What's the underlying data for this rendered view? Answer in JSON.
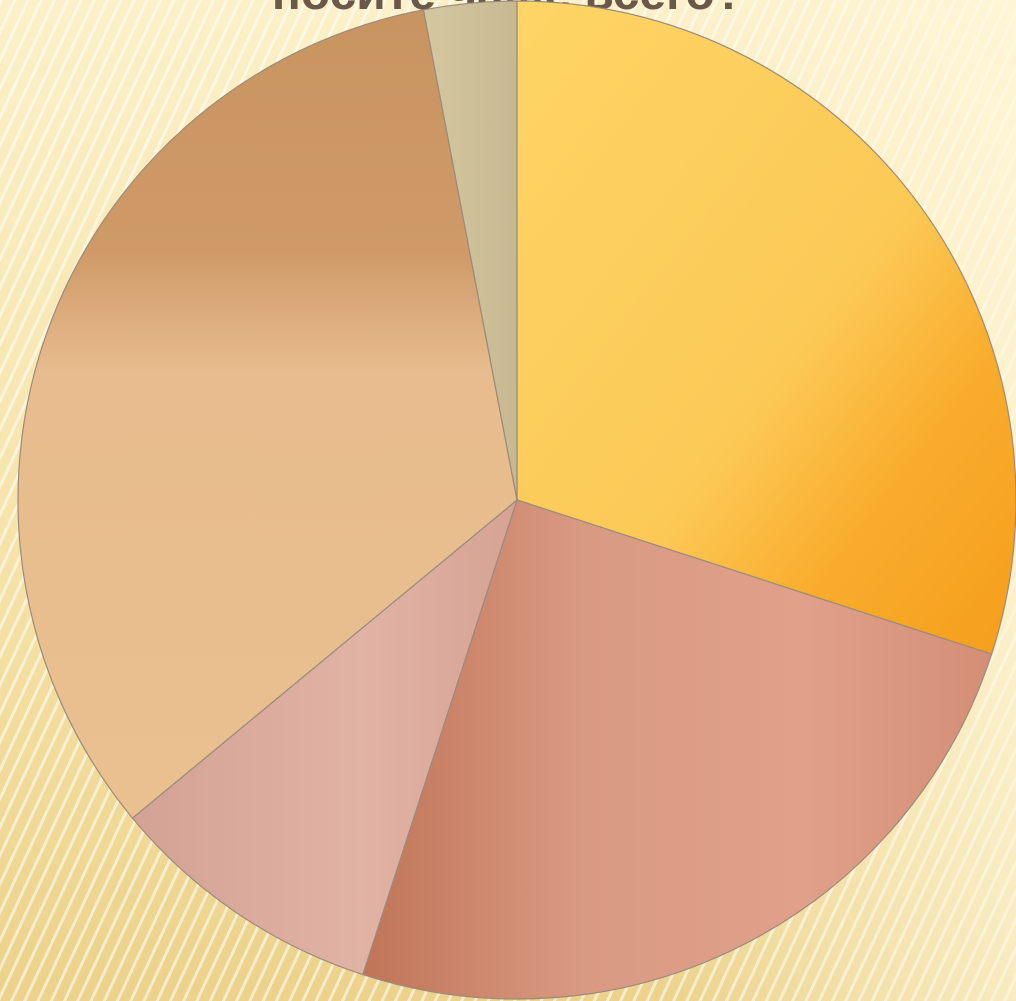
{
  "title": "носите чаще всего?",
  "chart_data": {
    "type": "pie",
    "start": "12 o'clock",
    "direction": "clockwise",
    "legend": "none",
    "categories": [
      "",
      "",
      "",
      "",
      ""
    ],
    "values": [
      30,
      25,
      9,
      33,
      3
    ],
    "colors": [
      "#fbc44c",
      "#d9957f",
      "#dcad9e",
      "#e6b98a",
      "#d8cba6"
    ]
  }
}
